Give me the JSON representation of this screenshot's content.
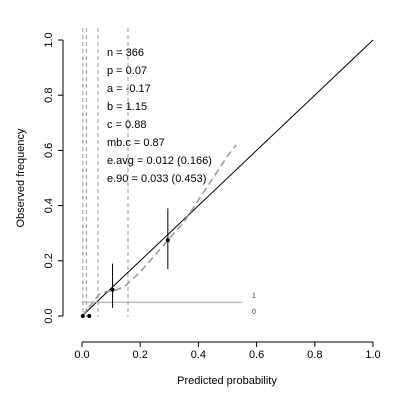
{
  "chart_data": {
    "type": "scatter",
    "title": "",
    "xlabel": "Predicted probability",
    "ylabel": "Observed frequency",
    "xlim": [
      0,
      1
    ],
    "ylim": [
      0,
      1
    ],
    "xticks": [
      "0.0",
      "0.2",
      "0.4",
      "0.6",
      "0.8",
      "1.0"
    ],
    "yticks": [
      "0.0",
      "0.2",
      "0.4",
      "0.6",
      "0.8",
      "1.0"
    ],
    "grid": false,
    "stats": [
      "n = 366",
      "p = 0.07",
      "a = -0.17",
      "b = 1.15",
      "c = 0.88",
      "mb.c = 0.87",
      "e.avg = 0.012 (0.166)",
      "e.90 = 0.033 (0.453)"
    ],
    "ideal_line": {
      "x": [
        0,
        1
      ],
      "y": [
        0,
        1
      ]
    },
    "groups": [
      {
        "x": 0.003,
        "y": 0.0,
        "lo": 0.0,
        "hi": 0.0
      },
      {
        "x": 0.025,
        "y": 0.0,
        "lo": 0.0,
        "hi": 0.0
      },
      {
        "x": 0.105,
        "y": 0.095,
        "lo": 0.03,
        "hi": 0.19
      },
      {
        "x": 0.295,
        "y": 0.275,
        "lo": 0.17,
        "hi": 0.39
      }
    ],
    "smooth_curve": {
      "x": [
        0.0,
        0.03,
        0.06,
        0.09,
        0.12,
        0.15,
        0.2,
        0.25,
        0.3,
        0.35,
        0.4,
        0.45,
        0.5,
        0.53
      ],
      "y": [
        0.0,
        0.04,
        0.08,
        0.09,
        0.095,
        0.11,
        0.16,
        0.22,
        0.28,
        0.34,
        0.42,
        0.5,
        0.58,
        0.62
      ]
    },
    "quantile_lines": [
      0.003,
      0.015,
      0.055,
      0.158
    ],
    "spike_histogram": {
      "baseline_y": 0.05,
      "x_start": 0.0,
      "x_end": 0.55,
      "labels": [
        "1",
        "0"
      ]
    }
  }
}
